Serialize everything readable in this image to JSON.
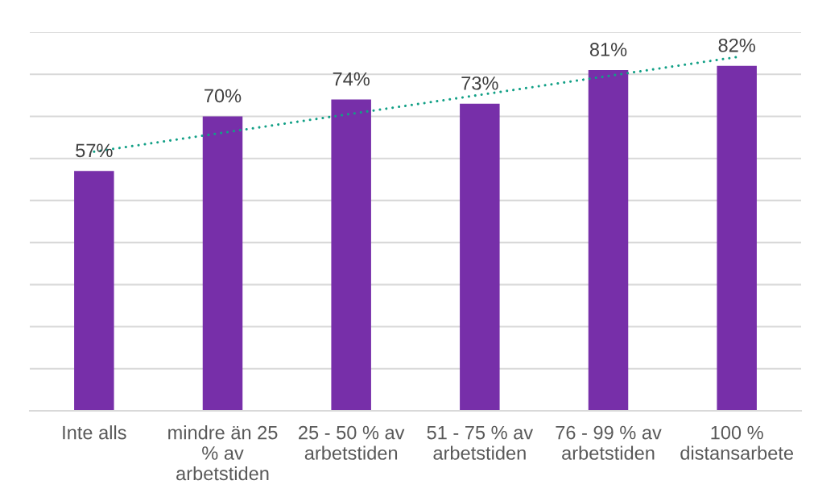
{
  "chart_data": {
    "type": "bar",
    "categories": [
      "Inte alls",
      "mindre än 25\n% av\narbetstiden",
      "25 - 50 % av\narbetstiden",
      "51 - 75 % av\narbetstiden",
      "76 - 99 % av\narbetstiden",
      "100 %\ndistansarbete"
    ],
    "series": [
      {
        "color": "#772fa9",
        "values": [
          57,
          70,
          74,
          73,
          81,
          82
        ],
        "value_labels": [
          "57%",
          "70%",
          "74%",
          "73%",
          "81%",
          "82%"
        ]
      },
      {
        "type": "line",
        "color": "#12a086",
        "line_style": "dotted",
        "values": [
          61.6,
          66.1,
          70.6,
          75.1,
          79.6,
          84.1
        ]
      }
    ],
    "ylim": [
      0,
      90
    ],
    "yticks": [
      {
        "value": 0,
        "label": null
      },
      {
        "value": 10,
        "label": null
      },
      {
        "value": 20,
        "label": null
      },
      {
        "value": 30,
        "label": null
      },
      {
        "value": 40,
        "label": null
      },
      {
        "value": 50,
        "label": null
      },
      {
        "value": 60,
        "label": null
      },
      {
        "value": 70,
        "label": null
      },
      {
        "value": 80,
        "label": null
      },
      {
        "value": 90,
        "label": null
      }
    ],
    "tick_labels": "x",
    "grid": "y",
    "legend": false
  }
}
